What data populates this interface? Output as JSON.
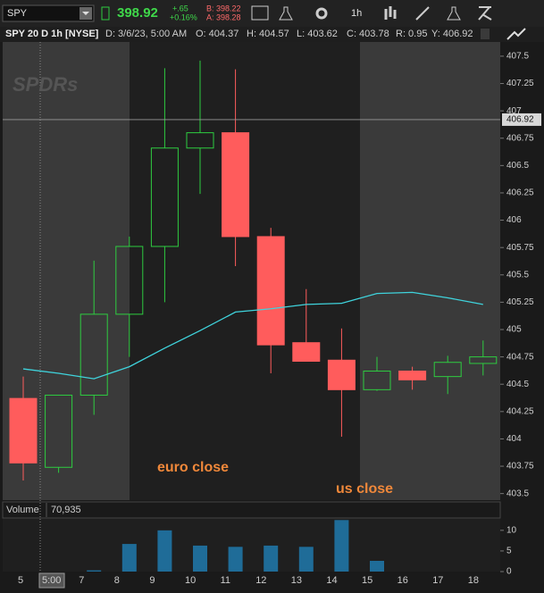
{
  "toolbar": {
    "symbol": "SPY",
    "last": "398.92",
    "change": "+.65",
    "change_pct": "+0.16%",
    "bid": "B: 398.22",
    "ask": "A: 398.28",
    "interval": "1h"
  },
  "header": {
    "title": "SPY 20 D 1h [NYSE]",
    "date": "D: 3/6/23, 5:00 AM",
    "open": "O: 404.37",
    "high": "H: 404.57",
    "low": "L: 403.62",
    "close": "C: 403.78",
    "range": "R: 0.95",
    "y": "Y: 406.92"
  },
  "chart_data": [
    {
      "type": "candlestick",
      "watermark": "SPDRs",
      "categories": [
        "5",
        null,
        "7",
        "8",
        "9",
        "10",
        "11",
        "12",
        "13",
        "14",
        "15",
        "16",
        "17",
        "18"
      ],
      "crosshair_label": "5:00",
      "open": [
        404.37,
        403.74,
        404.4,
        405.14,
        405.76,
        406.66,
        406.8,
        405.85,
        404.88,
        404.72,
        404.45,
        404.62,
        404.57,
        404.69
      ],
      "high": [
        404.57,
        404.4,
        405.63,
        405.85,
        407.39,
        407.46,
        407.38,
        405.93,
        405.37,
        405.01,
        404.75,
        404.66,
        404.76,
        404.9
      ],
      "low": [
        403.62,
        403.69,
        404.22,
        404.75,
        405.25,
        406.24,
        405.58,
        404.6,
        404.71,
        404.02,
        404.44,
        404.45,
        404.41,
        404.58
      ],
      "close": [
        403.78,
        404.4,
        405.14,
        405.76,
        406.66,
        406.8,
        405.85,
        404.86,
        404.71,
        404.45,
        404.62,
        404.54,
        404.7,
        404.75
      ],
      "up_color": "#2ecc40",
      "down_color": "#ff5c5c",
      "series": [
        {
          "color": "#3fd3dc",
          "values": [
            404.64,
            404.6,
            404.55,
            404.66,
            404.83,
            404.99,
            405.16,
            405.19,
            405.23,
            405.24,
            405.33,
            405.34,
            405.29,
            405.23
          ]
        }
      ],
      "last_price": 406.92,
      "annotations": [
        {
          "text": "euro close",
          "color": "#f0883a"
        },
        {
          "text": "us close",
          "color": "#f0883a"
        }
      ],
      "ylim": [
        403.44,
        407.63
      ],
      "yticks": [
        403.5,
        403.75,
        404,
        404.25,
        404.5,
        404.75,
        405,
        405.25,
        405.5,
        405.75,
        406,
        406.25,
        406.5,
        406.75,
        407,
        407.25,
        407.5
      ]
    },
    {
      "type": "bar",
      "title": "Volume",
      "subtitle": "70,935",
      "color": "#1f6c98",
      "values": [
        0,
        0,
        0.3,
        6.7,
        10,
        6.3,
        6,
        6.3,
        6,
        12.5,
        2.6,
        0,
        0,
        0
      ],
      "ylim": [
        0,
        13
      ],
      "yticks": [
        0,
        5,
        10
      ]
    }
  ]
}
